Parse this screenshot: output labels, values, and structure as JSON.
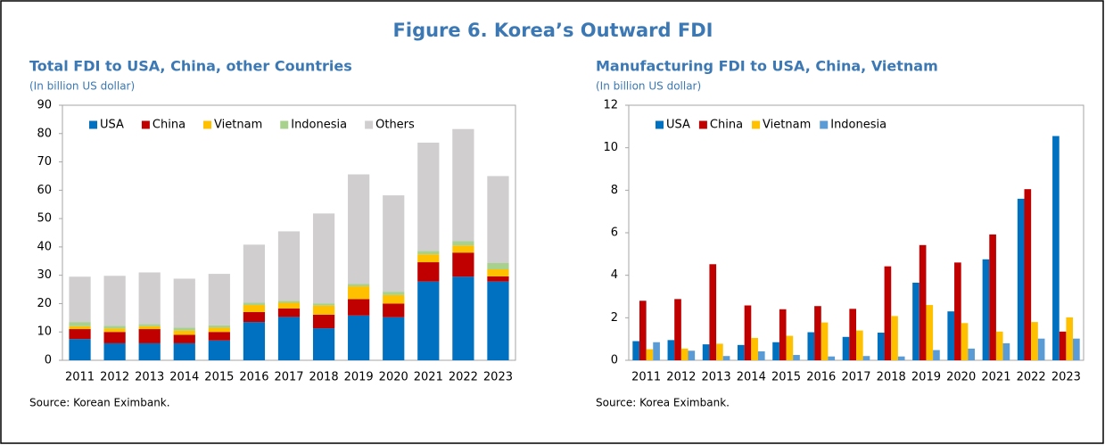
{
  "title": "Figure 6. Korea’s Outward FDI",
  "chart_data": [
    {
      "type": "bar",
      "stacked": true,
      "title": "Total FDI to USA, China, other Countries",
      "subtitle": "(In billion US dollar)",
      "source": "Source: Korean Eximbank.",
      "categories": [
        "2011",
        "2012",
        "2013",
        "2014",
        "2015",
        "2016",
        "2017",
        "2018",
        "2019",
        "2020",
        "2021",
        "2022",
        "2023"
      ],
      "series": [
        {
          "name": "USA",
          "color": "#0070c0",
          "values": [
            7.5,
            6,
            6,
            6,
            7,
            13.5,
            15.3,
            11.3,
            15.8,
            15.2,
            27.8,
            29.5,
            27.8
          ]
        },
        {
          "name": "China",
          "color": "#c00000",
          "values": [
            3.5,
            4,
            5,
            3,
            3,
            3.5,
            3,
            4.8,
            5.8,
            4.8,
            6.8,
            8.5,
            1.8
          ]
        },
        {
          "name": "Vietnam",
          "color": "#ffc000",
          "values": [
            1,
            1.2,
            1,
            1.5,
            1.5,
            2.5,
            2,
            3.2,
            4.5,
            3,
            2.8,
            2.5,
            2.5
          ]
        },
        {
          "name": "Indonesia",
          "color": "#a9d18e",
          "values": [
            1.5,
            1,
            0.8,
            1,
            0.8,
            0.8,
            0.7,
            0.8,
            0.8,
            1.2,
            1.2,
            1.5,
            2.2
          ]
        },
        {
          "name": "Others",
          "color": "#d0cece",
          "values": [
            16,
            17.6,
            18.2,
            17.3,
            18.2,
            20.5,
            24.5,
            31.7,
            38.7,
            34,
            38.2,
            39.6,
            30.7
          ]
        }
      ],
      "ylim": [
        0,
        90
      ],
      "yticks": [
        0,
        10,
        20,
        30,
        40,
        50,
        60,
        70,
        80,
        90
      ],
      "legend": "top-left"
    },
    {
      "type": "bar",
      "stacked": false,
      "title": "Manufacturing FDI to USA, China, Vietnam",
      "subtitle": "(In billion US dollar)",
      "source": "Source: Korea Eximbank.",
      "categories": [
        "2011",
        "2012",
        "2013",
        "2014",
        "2015",
        "2016",
        "2017",
        "2018",
        "2019",
        "2020",
        "2021",
        "2022",
        "2023"
      ],
      "series": [
        {
          "name": "USA",
          "color": "#0070c0",
          "values": [
            0.9,
            0.95,
            0.75,
            0.72,
            0.85,
            1.32,
            1.1,
            1.3,
            3.65,
            2.3,
            4.75,
            7.6,
            10.55
          ]
        },
        {
          "name": "China",
          "color": "#c00000",
          "values": [
            2.8,
            2.88,
            4.52,
            2.58,
            2.4,
            2.55,
            2.42,
            4.42,
            5.42,
            4.6,
            5.92,
            8.05,
            1.35
          ]
        },
        {
          "name": "Vietnam",
          "color": "#ffc000",
          "values": [
            0.52,
            0.55,
            0.78,
            1.05,
            1.15,
            1.78,
            1.4,
            2.08,
            2.6,
            1.75,
            1.35,
            1.8,
            2.02
          ]
        },
        {
          "name": "Indonesia",
          "color": "#5b9bd5",
          "values": [
            0.85,
            0.45,
            0.2,
            0.42,
            0.25,
            0.18,
            0.2,
            0.18,
            0.48,
            0.55,
            0.8,
            1.02,
            1.02
          ]
        }
      ],
      "ylim": [
        0,
        12
      ],
      "yticks": [
        0,
        2,
        4,
        6,
        8,
        10,
        12
      ],
      "legend": "top-left"
    }
  ]
}
